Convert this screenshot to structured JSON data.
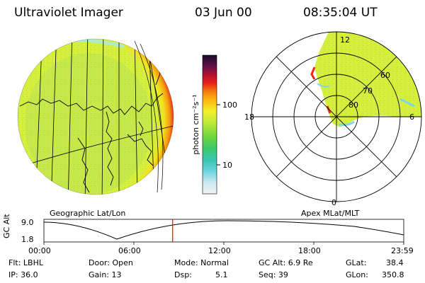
{
  "header": {
    "instrument": "Ultraviolet Imager",
    "date": "03 Jun 00",
    "time": "08:35:04 UT"
  },
  "left_panel": {
    "label": "Geographic Lat/Lon"
  },
  "right_panel": {
    "label": "Apex MLat/MLT",
    "mlt_labels": {
      "top": "12",
      "left": "18",
      "right": "6",
      "bottom": "0"
    },
    "lat_labels": [
      "60",
      "70",
      "80"
    ]
  },
  "colorbar": {
    "unit_label": "photon cm⁻²s⁻¹",
    "ticks": [
      "100",
      "10"
    ],
    "scale": "log"
  },
  "timeline": {
    "y_label": "GC Alt",
    "y_ticks": [
      "9.0",
      "1.8"
    ],
    "x_ticks": [
      "00:00",
      "06:00",
      "12:00",
      "18:00",
      "23:59"
    ],
    "current_time_fraction": 0.3577,
    "marker_color": "#ff0000"
  },
  "info": {
    "row1": {
      "flt": "Flt: LBHL",
      "door": "Door: Open",
      "mode": "Mode: Normal",
      "gc_alt": "GC Alt: 6.9 Re",
      "glat": "GLat:",
      "glat_val": "38.4"
    },
    "row2": {
      "ip": "IP: 36.0",
      "gain": "Gain: 13",
      "dsp": "Dsp:",
      "dsp_val": "5.1",
      "seq": "Seq: 39",
      "glon": "GLon:",
      "glon_val": "350.8"
    }
  },
  "colors": {
    "disk_fill": "#d8f03a",
    "limb_red": "#e8281a",
    "limb_orange": "#f59a10",
    "background": "#ffffff"
  }
}
